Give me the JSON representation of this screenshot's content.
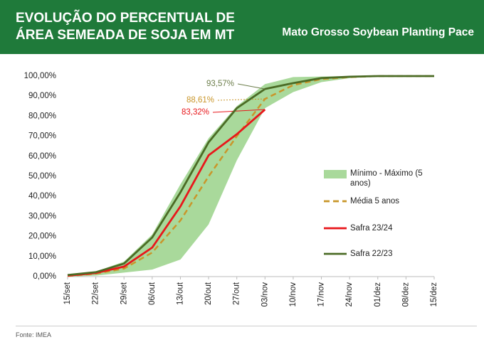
{
  "header": {
    "title": "EVOLUÇÃO DO PERCENTUAL DE ÁREA SEMEADA DE SOJA EM MT",
    "subtitle": "Mato Grosso Soybean Planting Pace"
  },
  "source": "Fonte: IMEA",
  "chart_data": {
    "type": "line",
    "categories": [
      "15/set",
      "22/set",
      "29/set",
      "06/out",
      "13/out",
      "20/out",
      "27/out",
      "03/nov",
      "10/nov",
      "17/nov",
      "24/nov",
      "01/dez",
      "08/dez",
      "15/dez"
    ],
    "ylim": [
      0,
      100
    ],
    "yticks": [
      {
        "value": 0,
        "label": "0,00%"
      },
      {
        "value": 10,
        "label": "10,00%"
      },
      {
        "value": 20,
        "label": "20,00%"
      },
      {
        "value": 30,
        "label": "30,00%"
      },
      {
        "value": 40,
        "label": "40,00%"
      },
      {
        "value": 50,
        "label": "50,00%"
      },
      {
        "value": 60,
        "label": "60,00%"
      },
      {
        "value": 70,
        "label": "70,00%"
      },
      {
        "value": 80,
        "label": "80,00%"
      },
      {
        "value": 90,
        "label": "90,00%"
      },
      {
        "value": 100,
        "label": "100,00%"
      }
    ],
    "band": {
      "name": "Mínimo - Máximo (5 anos)",
      "color": "#a9d99b",
      "low": [
        0,
        0.5,
        2,
        3.5,
        8.5,
        26,
        58,
        84,
        92,
        97,
        99,
        99.8,
        100,
        100
      ],
      "high": [
        0.8,
        2.5,
        7.5,
        21,
        46,
        69,
        85,
        96,
        99.5,
        99.8,
        100,
        100,
        100,
        100
      ]
    },
    "series": [
      {
        "name": "Média 5 anos",
        "color": "#c9962a",
        "dash": true,
        "values": [
          0.3,
          1.5,
          4,
          12,
          28,
          50,
          70,
          88.61,
          95.5,
          98.5,
          99.5,
          100,
          100,
          100
        ],
        "value_labels": [
          null,
          null,
          null,
          null,
          null,
          null,
          null,
          "88,61%",
          null,
          null,
          null,
          null,
          null,
          null
        ]
      },
      {
        "name": "Safra 23/24",
        "color": "#e8171b",
        "values": [
          0.5,
          1.8,
          5,
          14.5,
          35,
          60.5,
          71,
          83.32,
          null,
          null,
          null,
          null,
          null,
          null
        ],
        "value_labels": [
          null,
          null,
          null,
          null,
          null,
          null,
          null,
          "83,32%",
          null,
          null,
          null,
          null,
          null,
          null
        ]
      },
      {
        "name": "Safra 22/23",
        "color": "#4b6b25",
        "values": [
          0.8,
          2.2,
          6.5,
          19.5,
          42,
          67,
          84,
          93.57,
          96.5,
          99,
          99.7,
          100,
          100,
          100
        ],
        "value_labels": [
          null,
          null,
          null,
          null,
          null,
          null,
          null,
          "93,57%",
          null,
          null,
          null,
          null,
          null,
          null
        ]
      }
    ]
  }
}
